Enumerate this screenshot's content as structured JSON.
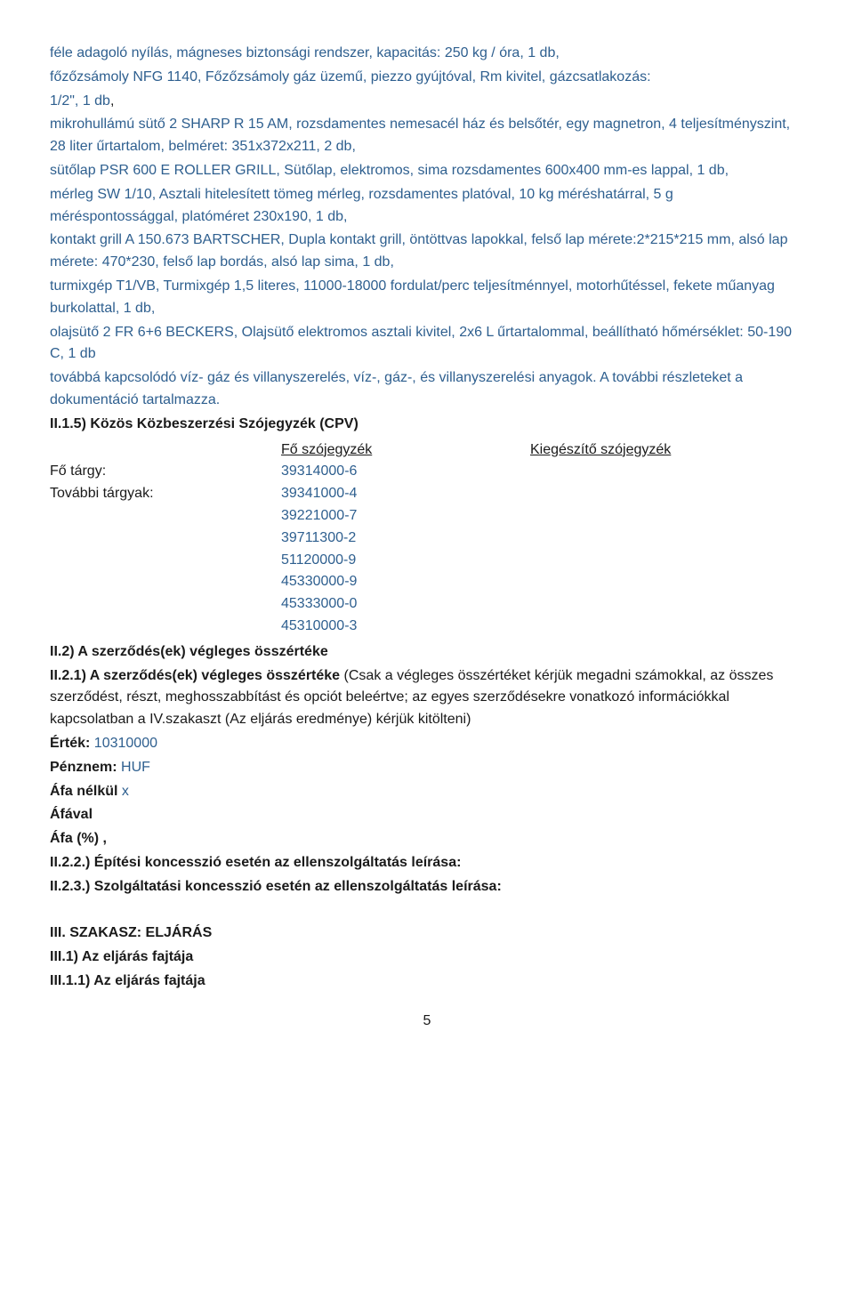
{
  "spec": {
    "l1": "féle adagoló nyílás, mágneses biztonsági rendszer, kapacitás: 250 kg / óra, 1 db,",
    "l2": "főzőzsámoly NFG 1140, Főzőzsámoly gáz üzemű, piezzo gyújtóval, Rm kivitel, gázcsatlakozás:",
    "l3a": "1/2\", 1 db",
    "l3b": ",",
    "l4": "mikrohullámú sütő 2 SHARP R 15 AM, rozsdamentes nemesacél ház és belsőtér, egy magnetron, 4 teljesítményszint, 28 liter űrtartalom, belméret: 351x372x211, 2 db,",
    "l5": "sütőlap PSR 600 E ROLLER GRILL, Sütőlap, elektromos, sima rozsdamentes 600x400 mm-es lappal, 1 db,",
    "l6": "mérleg SW 1/10, Asztali hitelesített tömeg mérleg, rozsdamentes platóval, 10 kg méréshatárral, 5 g méréspontossággal, platóméret 230x190, 1 db,",
    "l7": "kontakt grill A 150.673 BARTSCHER, Dupla kontakt grill, öntöttvas lapokkal, felső lap mérete:2*215*215 mm, alsó lap mérete: 470*230, felső lap bordás, alsó lap sima, 1 db,",
    "l8": "turmixgép T1/VB, Turmixgép 1,5 literes, 11000-18000 fordulat/perc teljesítménnyel, motorhűtéssel, fekete műanyag burkolattal, 1 db,",
    "l9": "olajsütő 2 FR 6+6 BECKERS, Olajsütő elektromos asztali kivitel, 2x6 L űrtartalommal, beállítható hőmérséklet: 50-190 C, 1 db",
    "l10": "továbbá kapcsolódó víz- gáz és villanyszerelés, víz-, gáz-, és villanyszerelési anyagok. A további részleteket a dokumentáció tartalmazza."
  },
  "sections": {
    "cpv_title": "II.1.5) Közös Közbeszerzési Szójegyzék (CPV)",
    "fo_szojegyzek": "Fő szójegyzék",
    "kieg_szojegyzek": "Kiegészítő szójegyzék",
    "fo_targy": "Fő tárgy:",
    "tovabbi_targyak": "További tárgyak:",
    "cpv_main": "39314000-6",
    "cpv_other": [
      "39341000-4",
      "39221000-7",
      "39711300-2",
      "51120000-9",
      "45330000-9",
      "45333000-0",
      "45310000-3"
    ],
    "ii2": "II.2) A szerződés(ek) végleges összértéke",
    "ii21_a": "II.2.1) A szerződés(ek) végleges összértéke ",
    "ii21_b": "(Csak a végleges összértéket kérjük megadni számokkal, az összes szerződést, részt, meghosszabbítást és opciót beleértve; az egyes szerződésekre vonatkozó információkkal kapcsolatban a IV.szakaszt (Az eljárás eredménye) kérjük kitölteni)",
    "ertek_label": "Érték: ",
    "ertek_value": "10310000",
    "penznem_label": "Pénznem: ",
    "penznem_value": "HUF",
    "afa_nelkul": "Áfa nélkül ",
    "x": "x",
    "afaval": "Áfával",
    "afa_pct": "Áfa (%) ,",
    "ii22": "II.2.2.) Építési koncesszió esetén az ellenszolgáltatás leírása:",
    "ii23": "II.2.3.) Szolgáltatási koncesszió esetén az ellenszolgáltatás leírása:",
    "iii": "III. SZAKASZ: ELJÁRÁS",
    "iii1": "III.1) Az eljárás fajtája",
    "iii11": "III.1.1) Az eljárás fajtája"
  },
  "page_number": "5"
}
